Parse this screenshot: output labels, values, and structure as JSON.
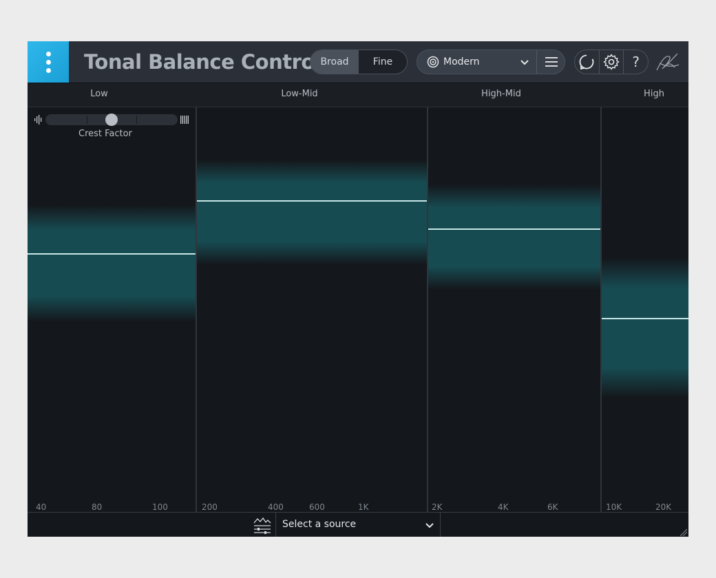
{
  "header": {
    "title": "Tonal Balance Control",
    "view_modes": [
      "Broad",
      "Fine"
    ],
    "active_view": "Broad",
    "target": "Modern"
  },
  "bands": [
    {
      "name": "Low",
      "freq_labels": [
        "40",
        "80",
        "100"
      ],
      "current_level": 0.36,
      "range_top": 0.24,
      "range_bottom": 0.53
    },
    {
      "name": "Low-Mid",
      "freq_labels": [
        "200",
        "400",
        "600",
        "1K"
      ],
      "current_level": 0.23,
      "range_top": 0.13,
      "range_bottom": 0.39
    },
    {
      "name": "High-Mid",
      "freq_labels": [
        "2K",
        "4K",
        "6K"
      ],
      "current_level": 0.3,
      "range_top": 0.19,
      "range_bottom": 0.45
    },
    {
      "name": "High",
      "freq_labels": [
        "10K",
        "20K"
      ],
      "current_level": 0.52,
      "range_top": 0.37,
      "range_bottom": 0.72
    }
  ],
  "crest_factor": {
    "label": "Crest Factor",
    "value": 0.5
  },
  "footer": {
    "source": "Select a source"
  },
  "colors": {
    "accent": "#1fa7dd",
    "band_fill": "#174b52",
    "current_line": "#c8e6e6"
  }
}
